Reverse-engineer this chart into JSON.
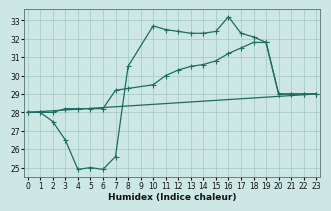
{
  "xlabel": "Humidex (Indice chaleur)",
  "bg_color": "#cde8e4",
  "grid_color": "#a8ccca",
  "line_color": "#1e6b62",
  "xlim": [
    -0.3,
    23.3
  ],
  "ylim": [
    24.5,
    33.6
  ],
  "yticks": [
    25,
    26,
    27,
    28,
    29,
    30,
    31,
    32,
    33
  ],
  "xticks": [
    0,
    1,
    2,
    3,
    4,
    5,
    6,
    7,
    8,
    9,
    10,
    11,
    12,
    13,
    14,
    15,
    16,
    17,
    18,
    19,
    20,
    21,
    22,
    23
  ],
  "curve1_x": [
    0,
    1,
    2,
    3,
    4,
    5,
    6,
    7,
    8,
    10,
    11,
    12,
    13,
    14,
    15,
    16,
    17,
    18,
    19,
    20,
    21,
    22,
    23
  ],
  "curve1_y": [
    28.0,
    28.0,
    27.5,
    26.5,
    24.9,
    25.0,
    24.9,
    25.6,
    30.5,
    32.7,
    32.5,
    32.4,
    32.3,
    32.3,
    32.4,
    33.2,
    32.3,
    32.1,
    31.8,
    29.0,
    29.0,
    29.0,
    29.0
  ],
  "curve2_x": [
    0,
    1,
    2,
    3,
    4,
    5,
    6,
    7,
    8,
    10,
    11,
    12,
    13,
    14,
    15,
    16,
    17,
    18,
    19,
    20,
    21,
    22,
    23
  ],
  "curve2_y": [
    28.0,
    28.0,
    28.0,
    28.2,
    28.2,
    28.2,
    28.2,
    29.2,
    29.3,
    29.5,
    30.0,
    30.3,
    30.5,
    30.6,
    30.8,
    31.2,
    31.5,
    31.8,
    31.8,
    29.0,
    29.0,
    29.0,
    29.0
  ],
  "line3_x": [
    0,
    23
  ],
  "line3_y": [
    28.0,
    29.0
  ]
}
